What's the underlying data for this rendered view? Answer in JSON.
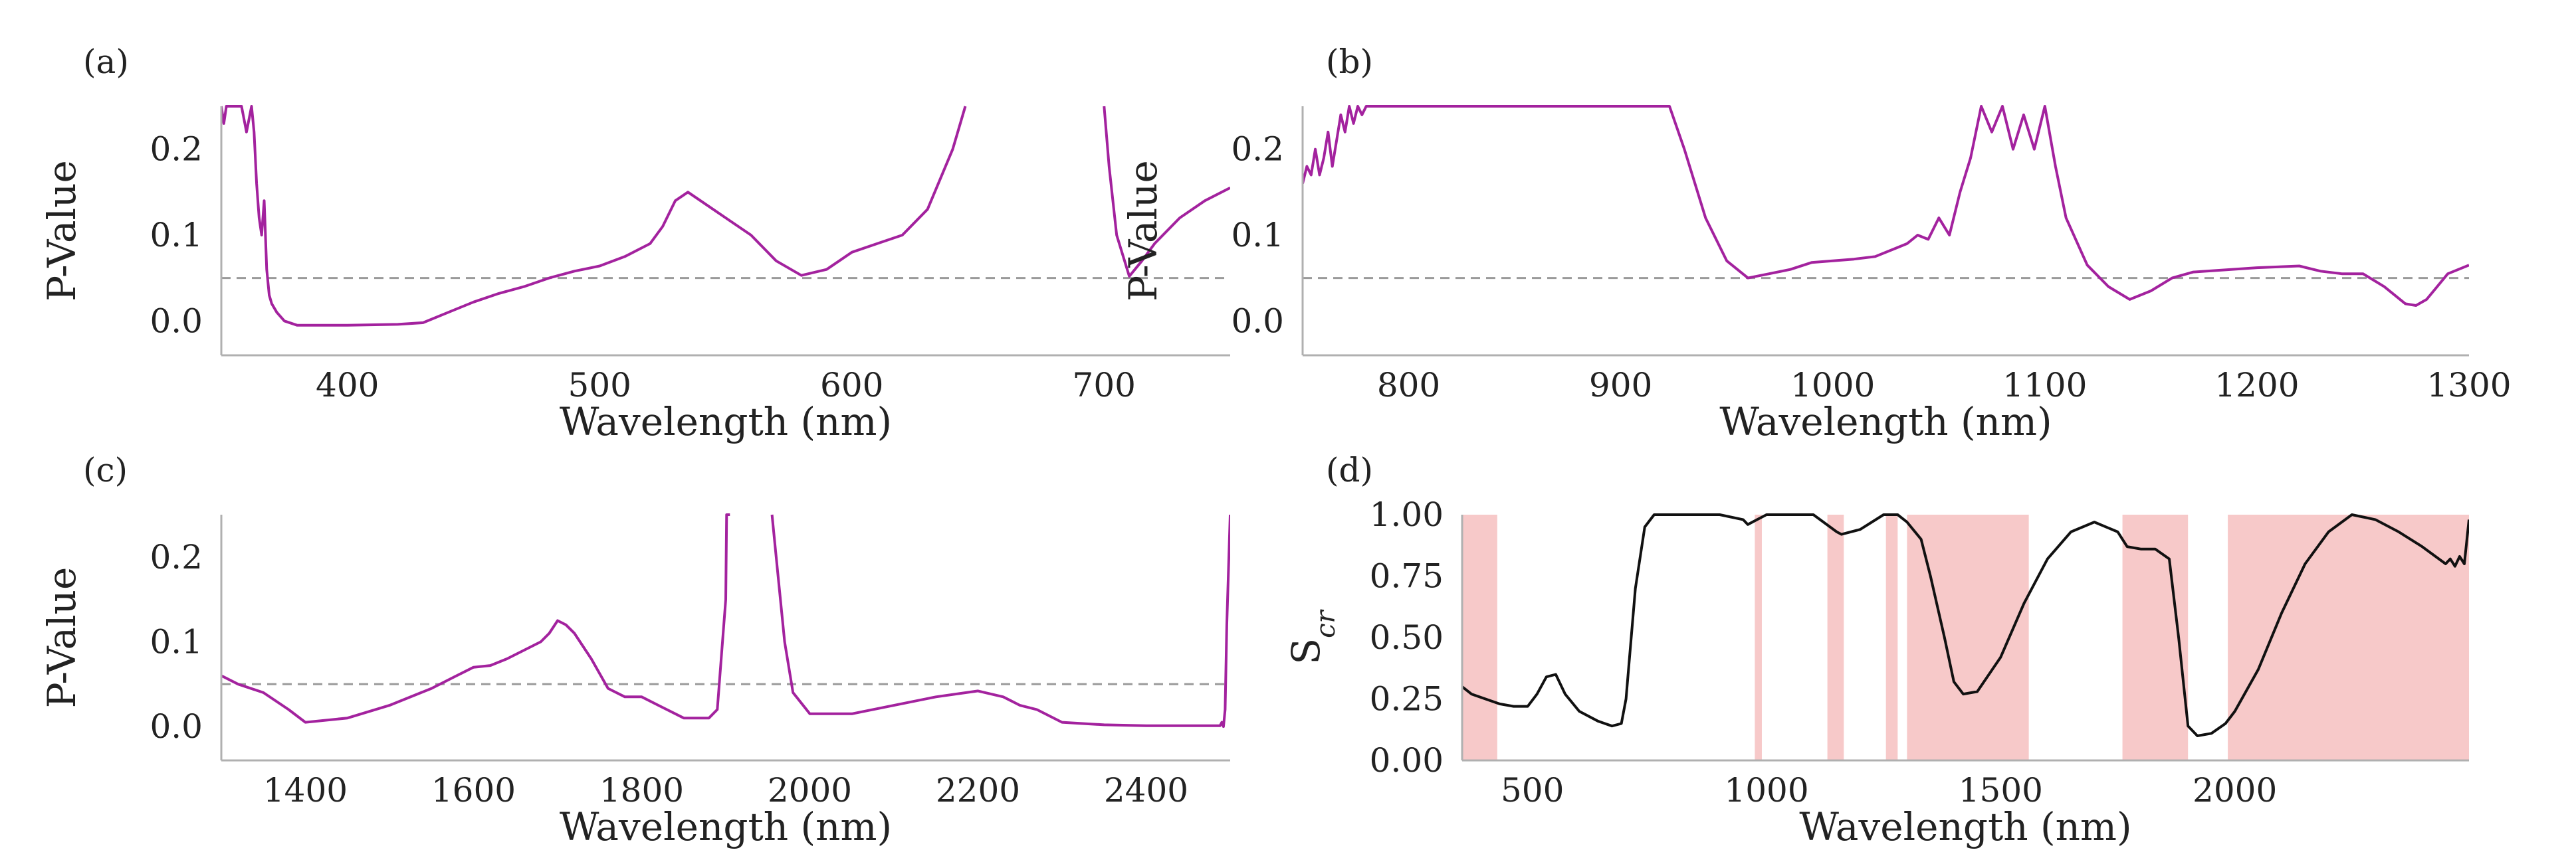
{
  "figure": {
    "colors": {
      "pvalue_line": "#a3229e",
      "scr_line": "#111111",
      "threshold_line": "#9a9a9a",
      "band_fill": "#f7c9c9",
      "axis": "#b0b0b0"
    }
  },
  "chart_data": [
    {
      "id": "a",
      "panel_label": "(a)",
      "type": "line",
      "xlabel": "Wavelength (nm)",
      "ylabel": "P-Value",
      "xlim": [
        350,
        750
      ],
      "ylim": [
        -0.04,
        0.25
      ],
      "xticks": [
        400,
        500,
        600,
        700
      ],
      "yticks": [
        0.0,
        0.1,
        0.2
      ],
      "ytick_labels": [
        "0.0",
        "0.1",
        "0.2"
      ],
      "threshold": 0.05,
      "series": [
        {
          "color_key": "pvalue_line",
          "x": [
            350,
            351,
            352,
            358,
            360,
            362,
            363,
            364,
            365,
            366,
            367,
            368,
            369,
            370,
            372,
            375,
            380,
            400,
            420,
            430,
            440,
            450,
            460,
            470,
            480,
            490,
            500,
            510,
            520,
            525,
            530,
            535,
            540,
            550,
            560,
            570,
            580,
            590,
            600,
            610,
            620,
            630,
            640,
            645,
            646,
            700,
            702,
            705,
            710,
            715,
            720,
            730,
            740,
            750
          ],
          "y": [
            0.25,
            0.23,
            0.25,
            0.25,
            0.22,
            0.25,
            0.22,
            0.16,
            0.12,
            0.1,
            0.14,
            0.06,
            0.03,
            0.02,
            0.01,
            0.0,
            -0.005,
            -0.005,
            -0.004,
            -0.002,
            0.01,
            0.022,
            0.032,
            0.04,
            0.05,
            0.058,
            0.064,
            0.075,
            0.09,
            0.11,
            0.14,
            0.15,
            0.14,
            0.12,
            0.1,
            0.07,
            0.053,
            0.06,
            0.08,
            0.09,
            0.1,
            0.13,
            0.2,
            0.25,
            null,
            0.25,
            0.18,
            0.1,
            0.052,
            0.07,
            0.09,
            0.12,
            0.14,
            0.155
          ]
        }
      ]
    },
    {
      "id": "b",
      "panel_label": "(b)",
      "type": "line",
      "xlabel": "Wavelength (nm)",
      "ylabel": "P-Value",
      "xlim": [
        750,
        1300
      ],
      "ylim": [
        -0.04,
        0.25
      ],
      "xticks": [
        800,
        900,
        1000,
        1100,
        1200,
        1300
      ],
      "yticks": [
        0.0,
        0.1,
        0.2
      ],
      "ytick_labels": [
        "0.0",
        "0.1",
        "0.2"
      ],
      "threshold": 0.05,
      "series": [
        {
          "color_key": "pvalue_line",
          "x": [
            750,
            752,
            754,
            756,
            758,
            760,
            762,
            764,
            766,
            768,
            770,
            772,
            774,
            776,
            778,
            780,
            782,
            783,
            923,
            930,
            940,
            950,
            960,
            970,
            980,
            990,
            1000,
            1010,
            1020,
            1030,
            1035,
            1040,
            1045,
            1050,
            1055,
            1060,
            1065,
            1070,
            1075,
            1080,
            1085,
            1090,
            1095,
            1100,
            1105,
            1110,
            1120,
            1130,
            1140,
            1150,
            1160,
            1170,
            1200,
            1220,
            1230,
            1240,
            1250,
            1260,
            1270,
            1275,
            1280,
            1285,
            1290,
            1300
          ],
          "y": [
            0.16,
            0.18,
            0.17,
            0.2,
            0.17,
            0.19,
            0.22,
            0.18,
            0.21,
            0.24,
            0.22,
            0.25,
            0.23,
            0.25,
            0.24,
            0.25,
            0.25,
            0.25,
            0.25,
            0.2,
            0.12,
            0.07,
            0.05,
            0.055,
            0.06,
            0.068,
            0.07,
            0.072,
            0.075,
            0.085,
            0.09,
            0.1,
            0.095,
            0.12,
            0.1,
            0.15,
            0.19,
            0.25,
            0.22,
            0.25,
            0.2,
            0.24,
            0.2,
            0.25,
            0.18,
            0.12,
            0.065,
            0.04,
            0.025,
            0.035,
            0.05,
            0.057,
            0.062,
            0.064,
            0.058,
            0.055,
            0.055,
            0.04,
            0.02,
            0.018,
            0.025,
            0.04,
            0.055,
            0.065
          ]
        }
      ]
    },
    {
      "id": "c",
      "panel_label": "(c)",
      "type": "line",
      "xlabel": "Wavelength (nm)",
      "ylabel": "P-Value",
      "xlim": [
        1300,
        2500
      ],
      "ylim": [
        -0.04,
        0.25
      ],
      "xticks": [
        1400,
        1600,
        1800,
        2000,
        2200,
        2400
      ],
      "yticks": [
        0.0,
        0.1,
        0.2
      ],
      "ytick_labels": [
        "0.0",
        "0.1",
        "0.2"
      ],
      "threshold": 0.05,
      "series": [
        {
          "color_key": "pvalue_line",
          "x": [
            1300,
            1320,
            1350,
            1380,
            1400,
            1450,
            1500,
            1550,
            1580,
            1600,
            1620,
            1640,
            1660,
            1680,
            1690,
            1700,
            1710,
            1720,
            1740,
            1760,
            1780,
            1800,
            1820,
            1850,
            1880,
            1890,
            1900,
            1901,
            1905,
            1906,
            1955,
            1960,
            1970,
            1980,
            2000,
            2050,
            2100,
            2150,
            2200,
            2230,
            2250,
            2270,
            2300,
            2350,
            2400,
            2480,
            2488,
            2490,
            2492,
            2494,
            2496,
            2500
          ],
          "y": [
            0.06,
            0.05,
            0.04,
            0.02,
            0.005,
            0.01,
            0.025,
            0.045,
            0.06,
            0.07,
            0.072,
            0.08,
            0.09,
            0.1,
            0.11,
            0.125,
            0.12,
            0.11,
            0.08,
            0.045,
            0.035,
            0.035,
            0.025,
            0.01,
            0.01,
            0.02,
            0.15,
            0.25,
            0.25,
            null,
            0.25,
            0.2,
            0.1,
            0.04,
            0.015,
            0.015,
            0.025,
            0.035,
            0.042,
            0.035,
            0.025,
            0.02,
            0.005,
            0.002,
            0.001,
            0.001,
            0.001,
            0.005,
            0.0,
            0.02,
            0.12,
            0.25
          ]
        }
      ]
    },
    {
      "id": "d",
      "panel_label": "(d)",
      "type": "line",
      "xlabel": "Wavelength (nm)",
      "ylabel": "S",
      "ylabel_subscript": "cr",
      "xlim": [
        350,
        2500
      ],
      "ylim": [
        0.0,
        1.0
      ],
      "xticks": [
        500,
        1000,
        1500,
        2000
      ],
      "yticks": [
        0.0,
        0.25,
        0.5,
        0.75,
        1.0
      ],
      "ytick_labels": [
        "0.00",
        "0.25",
        "0.50",
        "0.75",
        "1.00"
      ],
      "bands": [
        [
          350,
          425
        ],
        [
          975,
          990
        ],
        [
          1130,
          1165
        ],
        [
          1255,
          1280
        ],
        [
          1300,
          1560
        ],
        [
          1760,
          1900
        ],
        [
          1985,
          2500
        ]
      ],
      "series": [
        {
          "color_key": "scr_line",
          "x": [
            350,
            370,
            400,
            430,
            460,
            490,
            510,
            530,
            550,
            570,
            600,
            640,
            670,
            690,
            700,
            720,
            740,
            760,
            780,
            800,
            900,
            950,
            960,
            980,
            1000,
            1050,
            1100,
            1150,
            1160,
            1200,
            1250,
            1280,
            1300,
            1330,
            1350,
            1380,
            1400,
            1420,
            1450,
            1500,
            1550,
            1600,
            1650,
            1700,
            1750,
            1770,
            1800,
            1830,
            1860,
            1880,
            1900,
            1920,
            1950,
            1980,
            2000,
            2050,
            2100,
            2150,
            2200,
            2250,
            2300,
            2350,
            2400,
            2450,
            2460,
            2470,
            2480,
            2490,
            2500
          ],
          "y": [
            0.3,
            0.27,
            0.25,
            0.23,
            0.22,
            0.22,
            0.27,
            0.34,
            0.35,
            0.27,
            0.2,
            0.16,
            0.14,
            0.15,
            0.25,
            0.7,
            0.95,
            1.0,
            1.0,
            1.0,
            1.0,
            0.98,
            0.96,
            0.98,
            1.0,
            1.0,
            1.0,
            0.93,
            0.92,
            0.94,
            1.0,
            1.0,
            0.97,
            0.9,
            0.75,
            0.5,
            0.32,
            0.27,
            0.28,
            0.42,
            0.64,
            0.82,
            0.93,
            0.97,
            0.93,
            0.87,
            0.86,
            0.86,
            0.82,
            0.5,
            0.14,
            0.1,
            0.11,
            0.15,
            0.2,
            0.37,
            0.6,
            0.8,
            0.93,
            1.0,
            0.98,
            0.93,
            0.87,
            0.8,
            0.82,
            0.79,
            0.83,
            0.8,
            0.98
          ]
        }
      ]
    }
  ]
}
